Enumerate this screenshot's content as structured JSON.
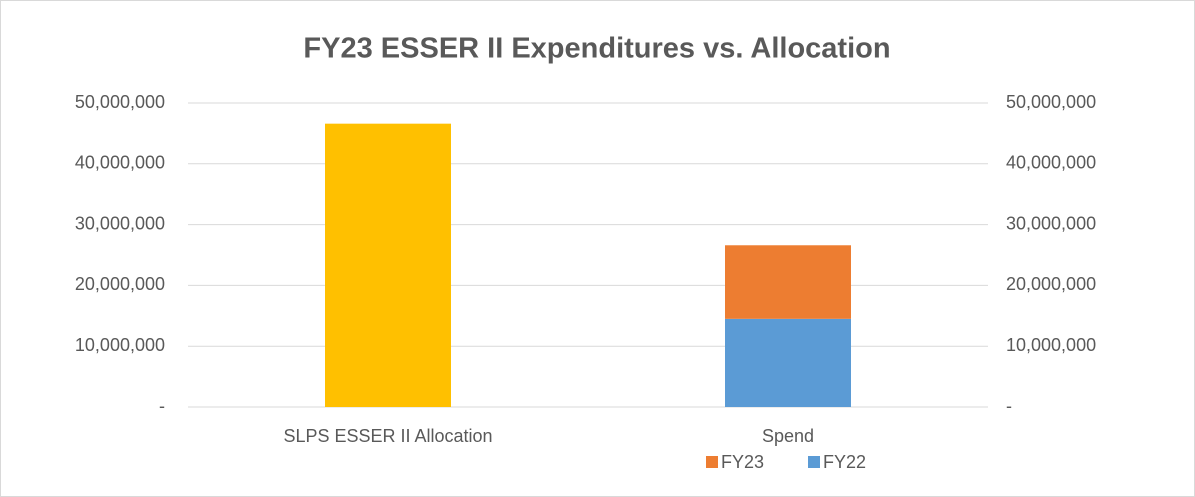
{
  "chart_data": {
    "type": "bar",
    "title": "FY23 ESSER II Expenditures vs. Allocation",
    "categories": [
      "SLPS ESSER II Allocation",
      "Spend"
    ],
    "series": [
      {
        "name": "FY23",
        "color": "#ed7d31",
        "values": [
          null,
          12100000
        ]
      },
      {
        "name": "FY22",
        "color": "#5b9bd5",
        "values": [
          null,
          14500000
        ]
      }
    ],
    "allocation": {
      "color": "#ffc000",
      "axis": "y2",
      "values": [
        46600000,
        null
      ]
    },
    "stacked": true,
    "ylim": [
      0,
      50000000
    ],
    "yticks": [
      {
        "value": 0,
        "label": "-"
      },
      {
        "value": 10000000,
        "label": "10,000,000"
      },
      {
        "value": 20000000,
        "label": "20,000,000"
      },
      {
        "value": 30000000,
        "label": "30,000,000"
      },
      {
        "value": 40000000,
        "label": "40,000,000"
      },
      {
        "value": 50000000,
        "label": "50,000,000"
      }
    ],
    "y2lim": [
      0,
      50000000
    ],
    "y2ticks": [
      {
        "value": 0,
        "label": "-"
      },
      {
        "value": 10000000,
        "label": "10,000,000"
      },
      {
        "value": 20000000,
        "label": "20,000,000"
      },
      {
        "value": 30000000,
        "label": "30,000,000"
      },
      {
        "value": 40000000,
        "label": "40,000,000"
      },
      {
        "value": 50000000,
        "label": "50,000,000"
      }
    ],
    "grid": true,
    "legend": "bottom"
  }
}
